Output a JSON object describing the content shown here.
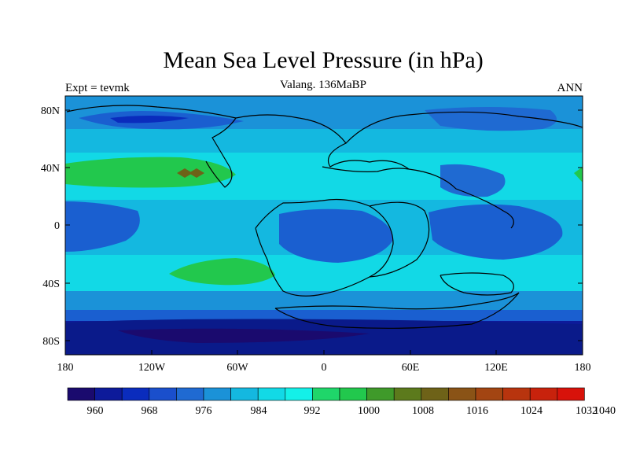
{
  "header": {
    "title": "Mean Sea Level Pressure (in hPa)",
    "subtitle": "Valang. 136MaBP",
    "left_label": "Expt = tevmk",
    "right_label": "ANN"
  },
  "map": {
    "lat_labels": [
      "80N",
      "40N",
      "0",
      "40S",
      "80S"
    ],
    "lon_labels": [
      "180",
      "120W",
      "60W",
      "0",
      "60E",
      "120E",
      "180"
    ]
  },
  "colorbar": {
    "labels": [
      "960",
      "968",
      "976",
      "984",
      "992",
      "1000",
      "1008",
      "1016",
      "1024",
      "1032",
      "1040"
    ],
    "colors": [
      "#1a0a6e",
      "#0d1a9a",
      "#0a2cbd",
      "#1a4fcc",
      "#1f6ad2",
      "#1b92d8",
      "#14b8e0",
      "#12d9e6",
      "#14f0e8",
      "#1fd66a",
      "#22c84d",
      "#3f9a2a",
      "#5c7a1c",
      "#6e6218",
      "#8a5316",
      "#a34512",
      "#b8340e",
      "#c8220c",
      "#d8120a"
    ]
  },
  "legend_colors": {
    "low": "#0a1a8a",
    "mid": "#1a5fd0",
    "light": "#1aa7dc",
    "cyan": "#10e6e4",
    "green": "#20c24e",
    "brown": "#6e6218"
  }
}
